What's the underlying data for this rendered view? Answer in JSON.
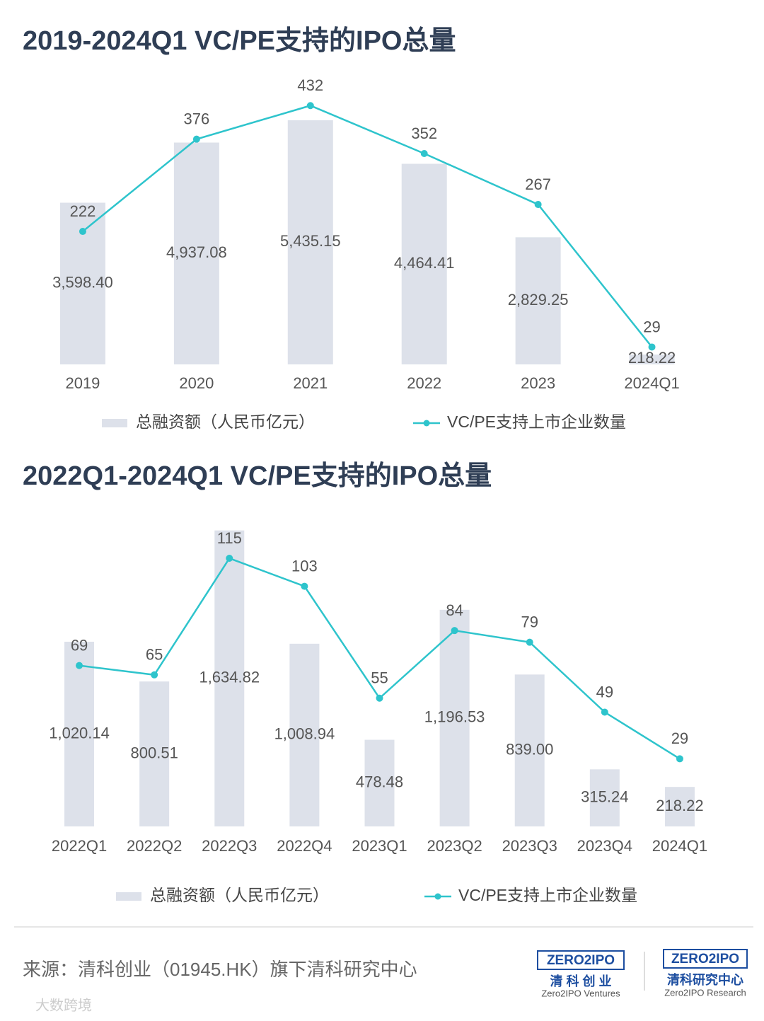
{
  "chart_data": [
    {
      "type": "bar",
      "title": "2019-2024Q1 VC/PE支持的IPO总量",
      "categories": [
        "2019",
        "2020",
        "2021",
        "2022",
        "2023",
        "2024Q1"
      ],
      "series": [
        {
          "name": "总融资额（人民币亿元）",
          "color": "#dde1ea",
          "type": "bar",
          "values": [
            3598.4,
            4937.08,
            5435.15,
            4464.41,
            2829.25,
            218.22
          ],
          "value_labels": [
            "3,598.40",
            "4,937.08",
            "5,435.15",
            "4,464.41",
            "2,829.25",
            "218.22"
          ]
        },
        {
          "name": "VC/PE支持上市企业数量",
          "color": "#2ec4cc",
          "type": "line",
          "axis": "y2",
          "values": [
            222,
            376,
            432,
            352,
            267,
            29
          ]
        }
      ],
      "ylim": [
        0,
        6000
      ],
      "y2lim": [
        0,
        450
      ]
    },
    {
      "type": "bar",
      "title": "2022Q1-2024Q1 VC/PE支持的IPO总量",
      "categories": [
        "2022Q1",
        "2022Q2",
        "2022Q3",
        "2022Q4",
        "2023Q1",
        "2023Q2",
        "2023Q3",
        "2023Q4",
        "2024Q1"
      ],
      "series": [
        {
          "name": "总融资额（人民币亿元）",
          "color": "#dde1ea",
          "type": "bar",
          "values": [
            1020.14,
            800.51,
            1634.82,
            1008.94,
            478.48,
            1196.53,
            839.0,
            315.24,
            218.22
          ],
          "value_labels": [
            "1,020.14",
            "800.51",
            "1,634.82",
            "1,008.94",
            "478.48",
            "1,196.53",
            "839.00",
            "315.24",
            "218.22"
          ]
        },
        {
          "name": "VC/PE支持上市企业数量",
          "color": "#2ec4cc",
          "type": "line",
          "axis": "y2",
          "values": [
            69,
            65,
            115,
            103,
            55,
            84,
            79,
            49,
            29
          ]
        }
      ],
      "ylim": [
        0,
        1700
      ],
      "y2lim": [
        0,
        132
      ]
    }
  ],
  "footer": {
    "source": "来源：清科创业（01945.HK）旗下清科研究中心",
    "logo1": {
      "mark": "ZERO2IPO",
      "name": "清 科 创 业",
      "en": "Zero2IPO Ventures"
    },
    "logo2": {
      "mark": "ZERO2IPO",
      "name": "清科研究中心",
      "en": "Zero2IPO Research"
    },
    "watermark": "大数跨境"
  }
}
